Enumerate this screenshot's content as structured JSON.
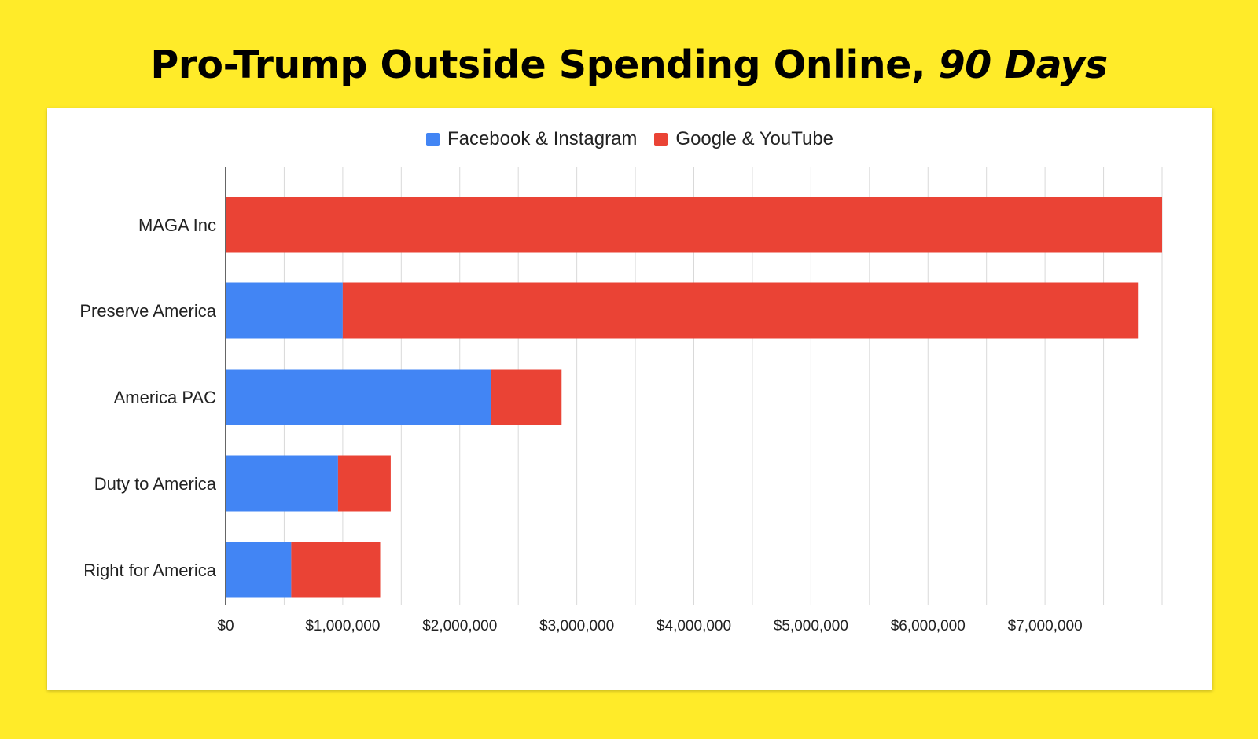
{
  "headline": {
    "main": "Pro-Trump Outside Spending Online, ",
    "emphasis": "90 Days"
  },
  "colors": {
    "background": "#FFEB29",
    "facebook": "#4285F4",
    "google": "#EA4335",
    "grid": "#D9D9D9",
    "axis": "#333333"
  },
  "legend": {
    "items": [
      {
        "label": "Facebook & Instagram",
        "color": "#4285F4"
      },
      {
        "label": "Google & YouTube",
        "color": "#EA4335"
      }
    ]
  },
  "chart_data": {
    "type": "bar",
    "orientation": "horizontal",
    "stacked": true,
    "title": "Pro-Trump Outside Spending Online, 90 Days",
    "categories": [
      "MAGA Inc",
      "Preserve America",
      "America PAC",
      "Duty to America",
      "Right for America"
    ],
    "series": [
      {
        "name": "Facebook & Instagram",
        "color": "#4285F4",
        "values": [
          0,
          1000000,
          2270000,
          960000,
          560000
        ]
      },
      {
        "name": "Google & YouTube",
        "color": "#EA4335",
        "values": [
          8000000,
          6800000,
          600000,
          450000,
          760000
        ]
      }
    ],
    "xlim": [
      0,
      8000000
    ],
    "x_major_ticks": [
      0,
      1000000,
      2000000,
      3000000,
      4000000,
      5000000,
      6000000,
      7000000
    ],
    "x_tick_labels": [
      "$0",
      "$1,000,000",
      "$2,000,000",
      "$3,000,000",
      "$4,000,000",
      "$5,000,000",
      "$6,000,000",
      "$7,000,000"
    ],
    "minor_grid_step": 500000,
    "xlabel": "",
    "ylabel": "",
    "legend_position": "top-center",
    "grid": true
  }
}
